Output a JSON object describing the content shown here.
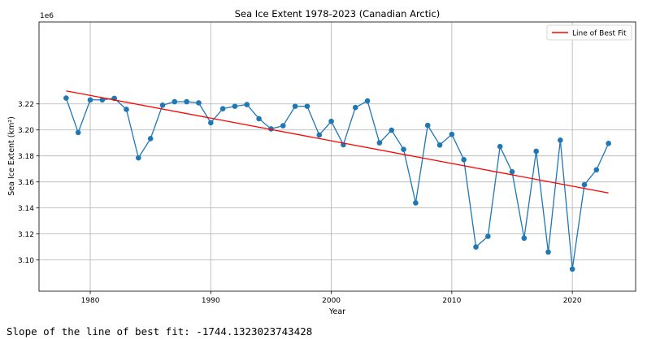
{
  "chart_data": {
    "type": "line",
    "title": "Sea Ice Extent 1978-2023 (Canadian Arctic)",
    "xlabel": "Year",
    "ylabel": "Sea Ice Extent (km²)",
    "y_offset_label": "1e6",
    "xlim": [
      1975.75,
      2025.25
    ],
    "ylim": [
      3076000,
      3283000
    ],
    "x_ticks": [
      1980,
      1990,
      2000,
      2010,
      2020
    ],
    "y_ticks": [
      3100000,
      3120000,
      3140000,
      3160000,
      3180000,
      3200000,
      3220000
    ],
    "y_tick_labels": [
      "3.10",
      "3.12",
      "3.14",
      "3.16",
      "3.18",
      "3.20",
      "3.22"
    ],
    "grid": true,
    "legend_position": "top-right",
    "series": [
      {
        "kind": "data",
        "color": "#1f77b4",
        "marker": "circle",
        "x": [
          1978,
          1979,
          1980,
          1981,
          1982,
          1983,
          1984,
          1985,
          1986,
          1987,
          1988,
          1989,
          1990,
          1991,
          1992,
          1993,
          1994,
          1995,
          1996,
          1997,
          1998,
          1999,
          2000,
          2001,
          2002,
          2003,
          2004,
          2005,
          2006,
          2007,
          2008,
          2009,
          2010,
          2011,
          2012,
          2013,
          2014,
          2015,
          2016,
          2017,
          2018,
          2019,
          2020,
          2021,
          2022,
          2023
        ],
        "values": [
          3224500,
          3198000,
          3223100,
          3223100,
          3224300,
          3215800,
          3178500,
          3193300,
          3219000,
          3221700,
          3221700,
          3220800,
          3205500,
          3216300,
          3218200,
          3219500,
          3208600,
          3200800,
          3203200,
          3218200,
          3218200,
          3196100,
          3206600,
          3188600,
          3217200,
          3222300,
          3190100,
          3199800,
          3185000,
          3143900,
          3203500,
          3188400,
          3196600,
          3177100,
          3110000,
          3118200,
          3187200,
          3167800,
          3116800,
          3183600,
          3106100,
          3192100,
          3093000,
          3157900,
          3169300,
          3189600
        ]
      },
      {
        "kind": "fit",
        "name": "Line of Best Fit",
        "color": "#ff0000",
        "x": [
          1978,
          2023
        ],
        "values": [
          3230000,
          3151500
        ]
      }
    ]
  },
  "output": {
    "slope_text": "Slope of the line of best fit: -1744.1323023743428"
  }
}
